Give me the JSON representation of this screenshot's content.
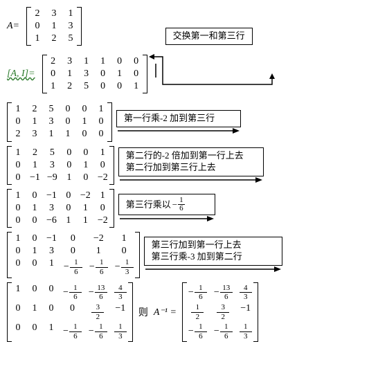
{
  "bracket_color": "#000000",
  "font_family": "Times New Roman",
  "annot_font": "SimSun",
  "step_a": {
    "label": "A=",
    "cols": 3,
    "cells": [
      "2",
      "3",
      "1",
      "0",
      "1",
      "3",
      "1",
      "2",
      "5"
    ]
  },
  "step_ai": {
    "label": "[A, I]=",
    "cols": 6,
    "cells": [
      "2",
      "3",
      "1",
      "1",
      "0",
      "0",
      "0",
      "1",
      "3",
      "0",
      "1",
      "0",
      "1",
      "2",
      "5",
      "0",
      "0",
      "1"
    ],
    "annot": "交换第一和第三行"
  },
  "step_1": {
    "cols": 6,
    "cells": [
      "1",
      "2",
      "5",
      "0",
      "0",
      "1",
      "0",
      "1",
      "3",
      "0",
      "1",
      "0",
      "2",
      "3",
      "1",
      "1",
      "0",
      "0"
    ],
    "annot": "第一行乘-2 加到第三行"
  },
  "step_2": {
    "cols": 6,
    "cells": [
      "1",
      "2",
      "5",
      "0",
      "0",
      "1",
      "0",
      "1",
      "3",
      "0",
      "1",
      "0",
      "0",
      "−1",
      "−9",
      "1",
      "0",
      "−2"
    ],
    "annot1": "第二行的-2 倍加到第一行上去",
    "annot2": "第二行加到第三行上去"
  },
  "step_3": {
    "cols": 6,
    "cells": [
      "1",
      "0",
      "−1",
      "0",
      "−2",
      "1",
      "0",
      "1",
      "3",
      "0",
      "1",
      "0",
      "0",
      "0",
      "−6",
      "1",
      "1",
      "−2"
    ],
    "annot_prefix": "第三行乘以",
    "annot_frac_n": "1",
    "annot_frac_d": "6"
  },
  "step_4": {
    "cols": 6,
    "annot1": "第三行加到第一行上去",
    "annot2": "第三行乘-3 加到第二行"
  },
  "result": {
    "then": "则",
    "ainv": "A⁻¹ ="
  }
}
